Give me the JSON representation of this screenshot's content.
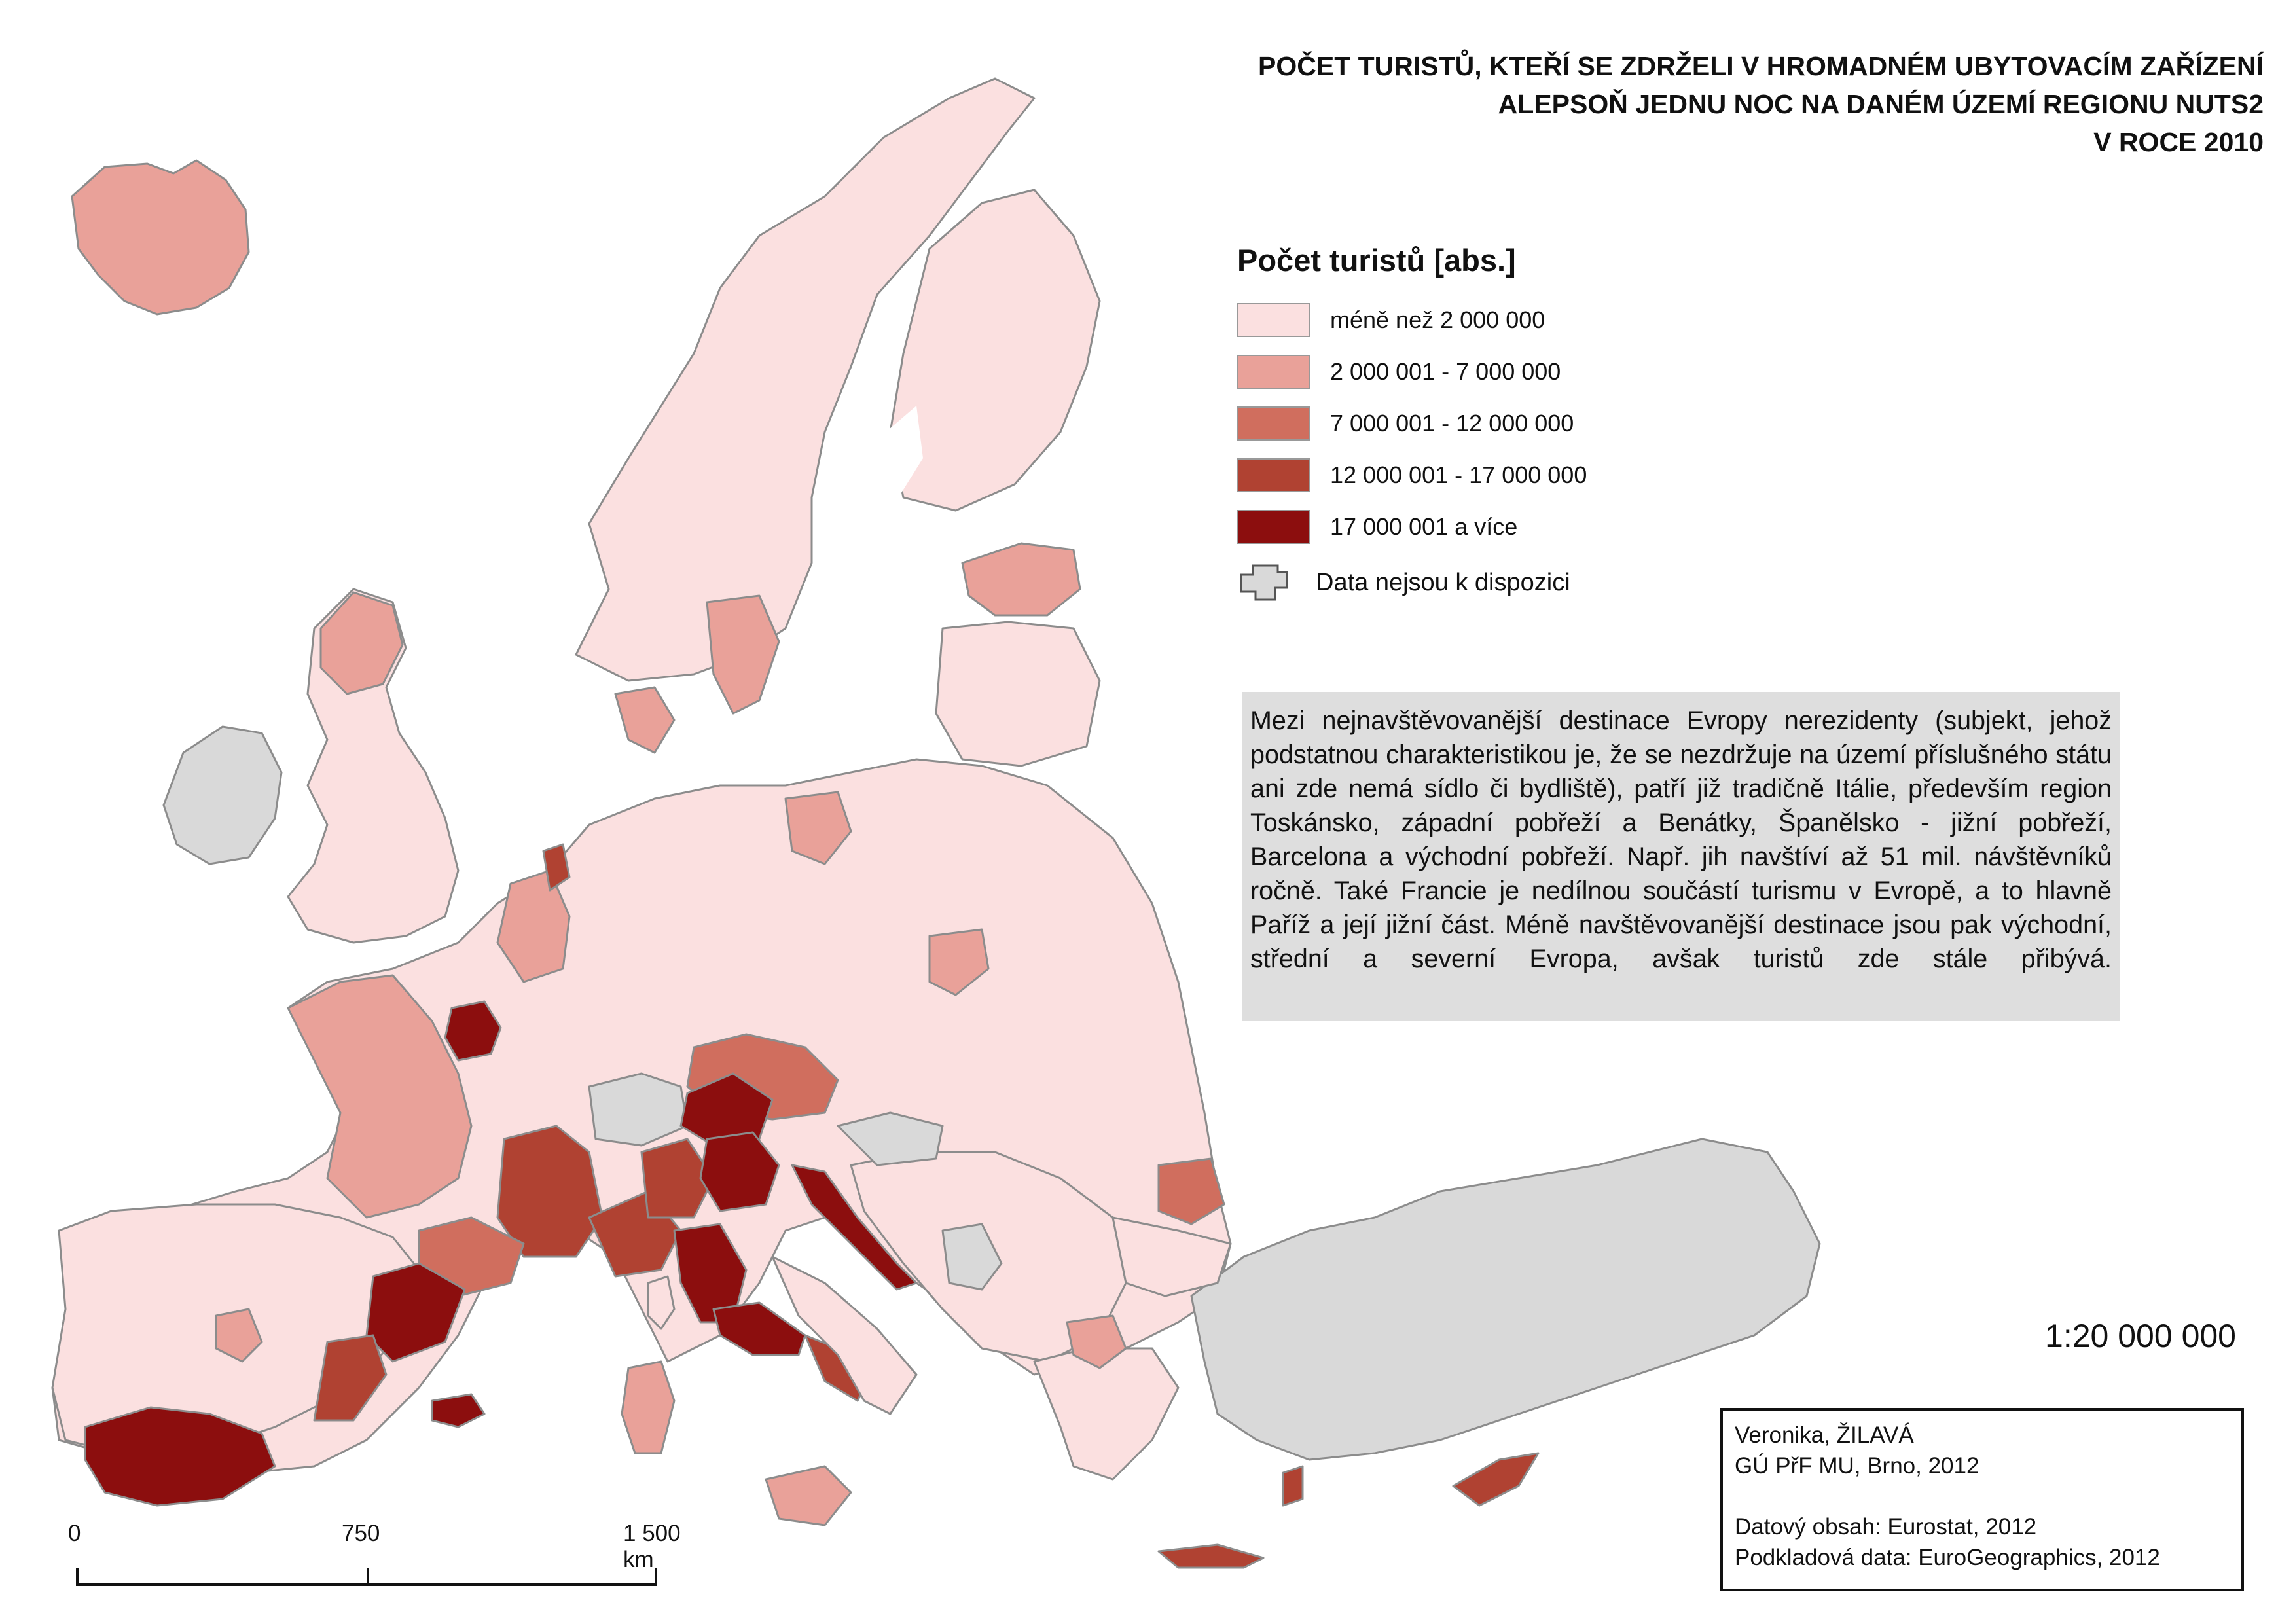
{
  "title": {
    "line1": "POČET TURISTŮ, KTEŘÍ SE ZDRŽELI V HROMADNÉM UBYTOVACÍM ZAŘÍZENÍ",
    "line2": "ALEPSOŇ JEDNU NOC NA DANÉM ÚZEMÍ REGIONU NUTS2",
    "line3": "V ROCE 2010"
  },
  "legend": {
    "title": "Počet turistů [abs.]",
    "classes": [
      {
        "label": "méně než 2 000 000",
        "color": "#fbe0e0"
      },
      {
        "label": "2 000 001 - 7 000 000",
        "color": "#e9a199"
      },
      {
        "label": "7 000 001 - 12 000 000",
        "color": "#d06e5e"
      },
      {
        "label": "12 000 001 - 17 000 000",
        "color": "#b04232"
      },
      {
        "label": "17 000 001 a více",
        "color": "#8c0e0e"
      }
    ],
    "no_data": {
      "label": "Data nejsou k dispozici",
      "color": "#d9d9d9"
    }
  },
  "note": "Mezi nejnavštěvovanější destinace Evropy nerezidenty (subjekt, jehož podstatnou charakteristikou je, že se nezdržuje na území příslušného státu ani zde nemá sídlo či bydliště), patří již tradičně Itálie, především region Toskánsko, západní pobřeží a Benátky, Španělsko - jižní pobřeží, Barcelona a východní pobřeží. Např. jih navštíví až 51 mil. návštěvníků ročně. Také Francie je nedílnou součástí turismu v Evropě, a to hlavně Paříž a její jižní část. Méně navštěvovanější destinace jsou pak východní, střední a severní Evropa, avšak turistů zde stále přibývá.",
  "scale": {
    "ratio": "1:20 000 000",
    "labels": [
      "0",
      "750",
      "1 500 km"
    ]
  },
  "credits": {
    "author": "Veronika, ŽILAVÁ",
    "institution": "GÚ PřF MU, Brno, 2012",
    "data_source": "Datový obsah: Eurostat, 2012",
    "base_data": "Podkladová data: EuroGeographics, 2012"
  }
}
